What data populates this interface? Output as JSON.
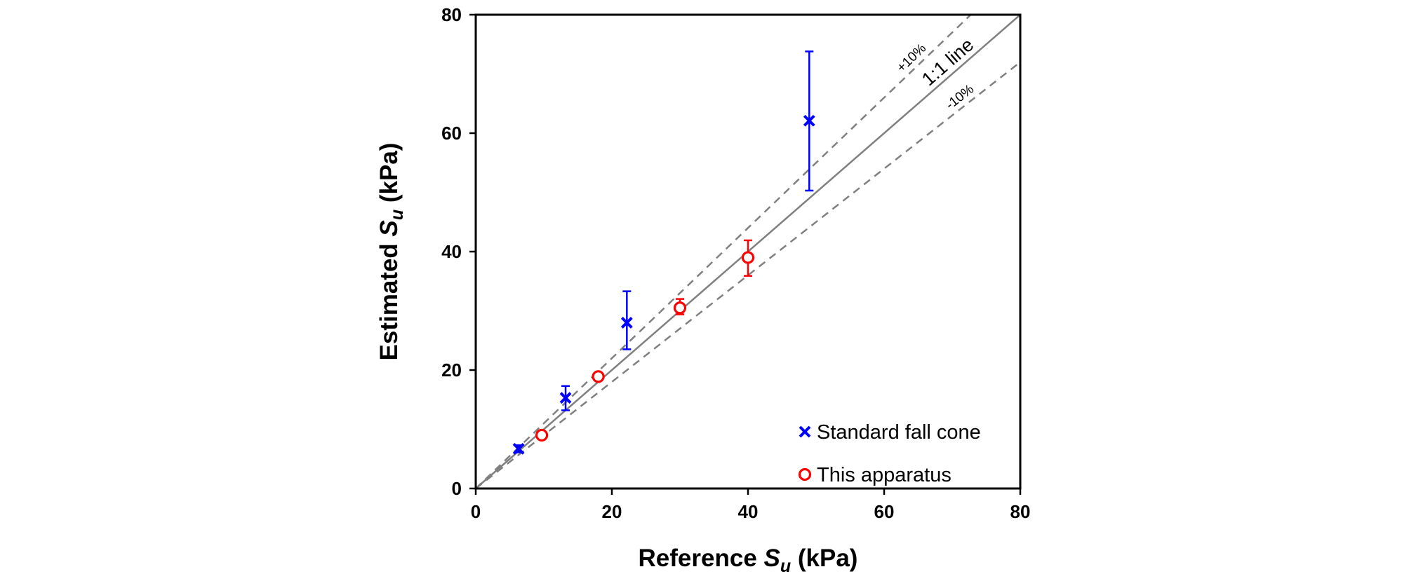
{
  "chart_data": {
    "type": "scatter",
    "xlabel": {
      "main": "Reference ",
      "symbol": "S",
      "subscript": "u",
      "unit": " (kPa)"
    },
    "ylabel": {
      "main": "Estimated ",
      "symbol": "S",
      "subscript": "u",
      "unit": " (kPa)"
    },
    "xlim": [
      0,
      80
    ],
    "ylim": [
      0,
      80
    ],
    "xticks": [
      "0",
      "20",
      "40",
      "60",
      "80"
    ],
    "yticks": [
      "0",
      "20",
      "40",
      "60",
      "80"
    ],
    "grid": false,
    "legend_position": "bottom-right",
    "reference_lines": [
      {
        "label": "1:1 line",
        "slope": 1.0,
        "style": "solid",
        "color": "#808080"
      },
      {
        "label": "+10%",
        "slope": 1.1,
        "style": "dashed",
        "color": "#808080"
      },
      {
        "label": "-10%",
        "slope": 0.9,
        "style": "dashed",
        "color": "#808080"
      }
    ],
    "series": [
      {
        "name": "Standard fall cone",
        "marker": "x",
        "color": "#0000ff",
        "points": [
          {
            "x": 6.3,
            "y": 6.7,
            "err_low": 6.1,
            "err_high": 7.3
          },
          {
            "x": 13.2,
            "y": 15.3,
            "err_low": 13.2,
            "err_high": 17.3
          },
          {
            "x": 22.2,
            "y": 28.0,
            "err_low": 23.5,
            "err_high": 33.3
          },
          {
            "x": 49.0,
            "y": 62.1,
            "err_low": 50.3,
            "err_high": 73.8
          }
        ]
      },
      {
        "name": "This apparatus",
        "marker": "o",
        "color": "#ff0000",
        "points": [
          {
            "x": 9.7,
            "y": 9.0,
            "err_low": 8.6,
            "err_high": 9.4
          },
          {
            "x": 18.0,
            "y": 18.9,
            "err_low": 18.3,
            "err_high": 19.5
          },
          {
            "x": 30.0,
            "y": 30.5,
            "err_low": 29.4,
            "err_high": 32.0
          },
          {
            "x": 40.0,
            "y": 39.0,
            "err_low": 35.9,
            "err_high": 41.9
          }
        ]
      }
    ]
  }
}
